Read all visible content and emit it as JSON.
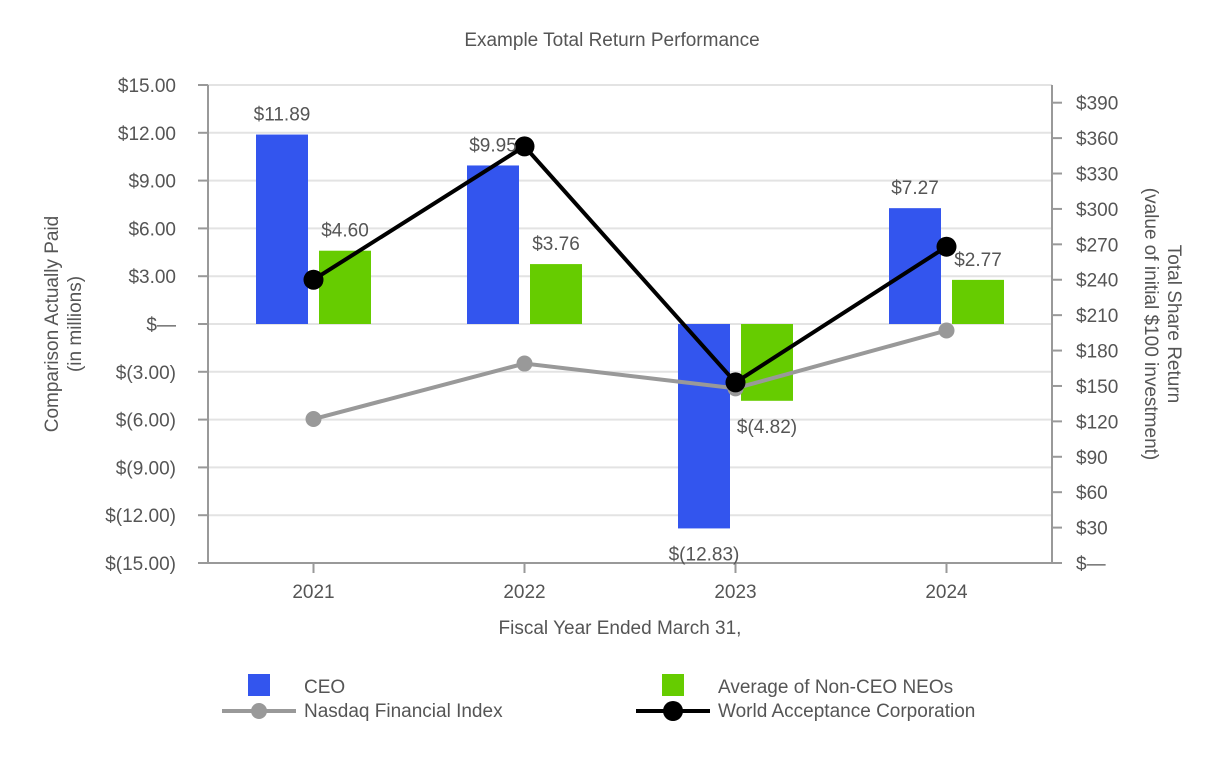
{
  "chart_data": {
    "type": "bar",
    "title": "Example Total Return Performance",
    "xlabel": "Fiscal Year Ended March 31,",
    "ylabel_left": [
      "Comparison Actually Paid",
      "(in millions)"
    ],
    "ylabel_right": [
      "Total Share Return",
      "(value of initial $100 investment)"
    ],
    "categories": [
      "2021",
      "2022",
      "2023",
      "2024"
    ],
    "ylim_left": [
      -15,
      15
    ],
    "ylim_right": [
      0,
      405
    ],
    "left_ticks": [
      {
        "value": 15,
        "label": "$15.00"
      },
      {
        "value": 12,
        "label": "$12.00"
      },
      {
        "value": 9,
        "label": "$9.00"
      },
      {
        "value": 6,
        "label": "$6.00"
      },
      {
        "value": 3,
        "label": "$3.00"
      },
      {
        "value": 0,
        "label": "$—"
      },
      {
        "value": -3,
        "label": "$(3.00)"
      },
      {
        "value": -6,
        "label": "$(6.00)"
      },
      {
        "value": -9,
        "label": "$(9.00)"
      },
      {
        "value": -12,
        "label": "$(12.00)"
      },
      {
        "value": -15,
        "label": "$(15.00)"
      }
    ],
    "right_ticks": [
      {
        "value": 390,
        "label": "$390"
      },
      {
        "value": 360,
        "label": "$360"
      },
      {
        "value": 330,
        "label": "$330"
      },
      {
        "value": 300,
        "label": "$300"
      },
      {
        "value": 270,
        "label": "$270"
      },
      {
        "value": 240,
        "label": "$240"
      },
      {
        "value": 210,
        "label": "$210"
      },
      {
        "value": 180,
        "label": "$180"
      },
      {
        "value": 150,
        "label": "$150"
      },
      {
        "value": 120,
        "label": "$120"
      },
      {
        "value": 90,
        "label": "$90"
      },
      {
        "value": 60,
        "label": "$60"
      },
      {
        "value": 30,
        "label": "$30"
      },
      {
        "value": 0,
        "label": "$—"
      }
    ],
    "bar_series": [
      {
        "name": "CEO",
        "color": "#3355ee",
        "values": [
          11.89,
          9.95,
          -12.83,
          7.27
        ],
        "labels": [
          "$11.89",
          "$9.95",
          "$(12.83)",
          "$7.27"
        ]
      },
      {
        "name": "Average of Non-CEO NEOs",
        "color": "#66cc00",
        "values": [
          4.6,
          3.76,
          -4.82,
          2.77
        ],
        "labels": [
          "$4.60",
          "$3.76",
          "$(4.82)",
          "$2.77"
        ]
      }
    ],
    "line_series": [
      {
        "name": "Nasdaq Financial Index",
        "color": "#999999",
        "values": [
          122,
          169,
          148,
          197
        ]
      },
      {
        "name": "World Acceptance Corporation",
        "color": "#000000",
        "values": [
          240,
          353,
          153,
          268
        ]
      }
    ],
    "grid": true,
    "legend_position": "bottom"
  }
}
